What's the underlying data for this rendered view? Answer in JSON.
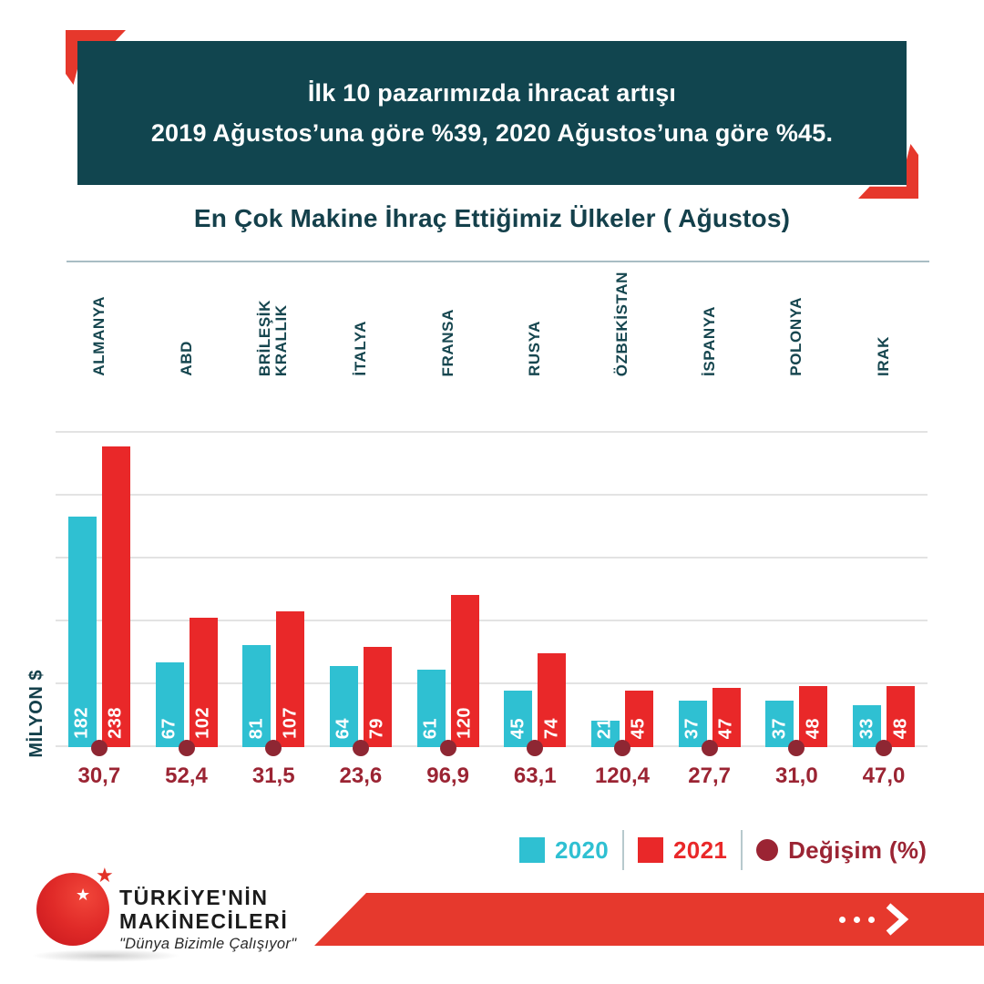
{
  "banner": {
    "line1": "İlk 10 pazarımızda ihracat artışı",
    "line2": "2019 Ağustos’una göre %39, 2020 Ağustos’una göre %45."
  },
  "chart_title": "En Çok Makine İhraç Ettiğimiz Ülkeler ( Ağustos)",
  "chart_data": {
    "type": "bar",
    "title": "En Çok Makine İhraç Ettiğimiz Ülkeler ( Ağustos)",
    "categories": [
      "ALMANYA",
      "ABD",
      "BRİLEŞİK\nKRALLIK",
      "İTALYA",
      "FRANSA",
      "RUSYA",
      "ÖZBEKİSTAN",
      "İSPANYA",
      "POLONYA",
      "IRAK"
    ],
    "series": [
      {
        "name": "2020",
        "values": [
          182,
          67,
          81,
          64,
          61,
          45,
          21,
          37,
          37,
          33
        ],
        "color": "#2fc0d2"
      },
      {
        "name": "2021",
        "values": [
          238,
          102,
          107,
          79,
          120,
          74,
          45,
          47,
          48,
          48
        ],
        "color": "#e92829"
      }
    ],
    "change_percent": [
      "30,7",
      "52,4",
      "31,5",
      "23,6",
      "96,9",
      "63,1",
      "120,4",
      "27,7",
      "31,0",
      "47,0"
    ],
    "ylabel": "MİLYON $",
    "ylim": [
      0,
      250
    ],
    "grid_step": 50,
    "grid": "horizontal",
    "legend_position": "bottom-right"
  },
  "legend": {
    "items": [
      {
        "label": "2020",
        "color": "#2fc0d2",
        "swatch": "square"
      },
      {
        "label": "2021",
        "color": "#e92829",
        "swatch": "square"
      },
      {
        "label": "Değişim (%)",
        "color": "#9b2433",
        "swatch": "dot"
      }
    ]
  },
  "footer": {
    "brand_line1": "TÜRKİYE'NİN",
    "brand_line2": "MAKİNECİLERİ",
    "slogan": "\"Dünya Bizimle Çalışıyor\""
  },
  "colors": {
    "banner_teal": "#11454f",
    "title_teal": "#14404b",
    "bar_2020": "#2fc0d2",
    "bar_2021": "#e92829",
    "change_maroon": "#9b2433",
    "dot_maroon": "#8e2733",
    "accent_red": "#e6382c",
    "gridline": "#e3e3e3"
  }
}
